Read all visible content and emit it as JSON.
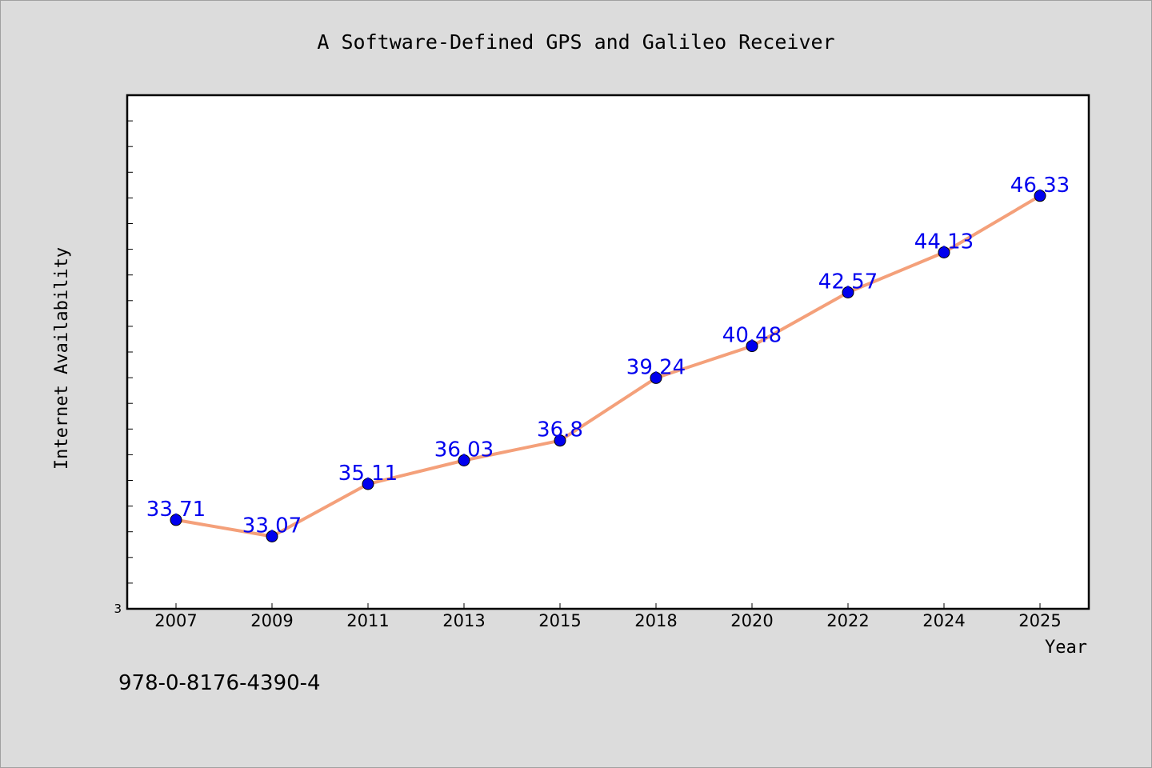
{
  "chart_data": {
    "type": "line",
    "title": "A Software-Defined GPS and Galileo Receiver",
    "xlabel": "Year",
    "ylabel": "Internet Availability",
    "categories": [
      "2007",
      "2009",
      "2011",
      "2013",
      "2015",
      "2018",
      "2020",
      "2022",
      "2024",
      "2025"
    ],
    "series": [
      {
        "values": [
          33.71,
          33.07,
          35.11,
          36.03,
          36.8,
          39.24,
          40.48,
          42.57,
          44.13,
          46.33
        ]
      }
    ],
    "data_labels": [
      "33.71",
      "33.07",
      "35.11",
      "36.03",
      "36.8",
      "39.24",
      "40.48",
      "42.57",
      "44.13",
      "46.33"
    ],
    "y_tick_label": "3",
    "ylim": [
      30.25,
      50.25
    ],
    "grid": false,
    "line_color": "#f4a07a",
    "marker_color": "#0000ee",
    "label_color": "#0000ee"
  },
  "footer_text": "978-0-8176-4390-4"
}
